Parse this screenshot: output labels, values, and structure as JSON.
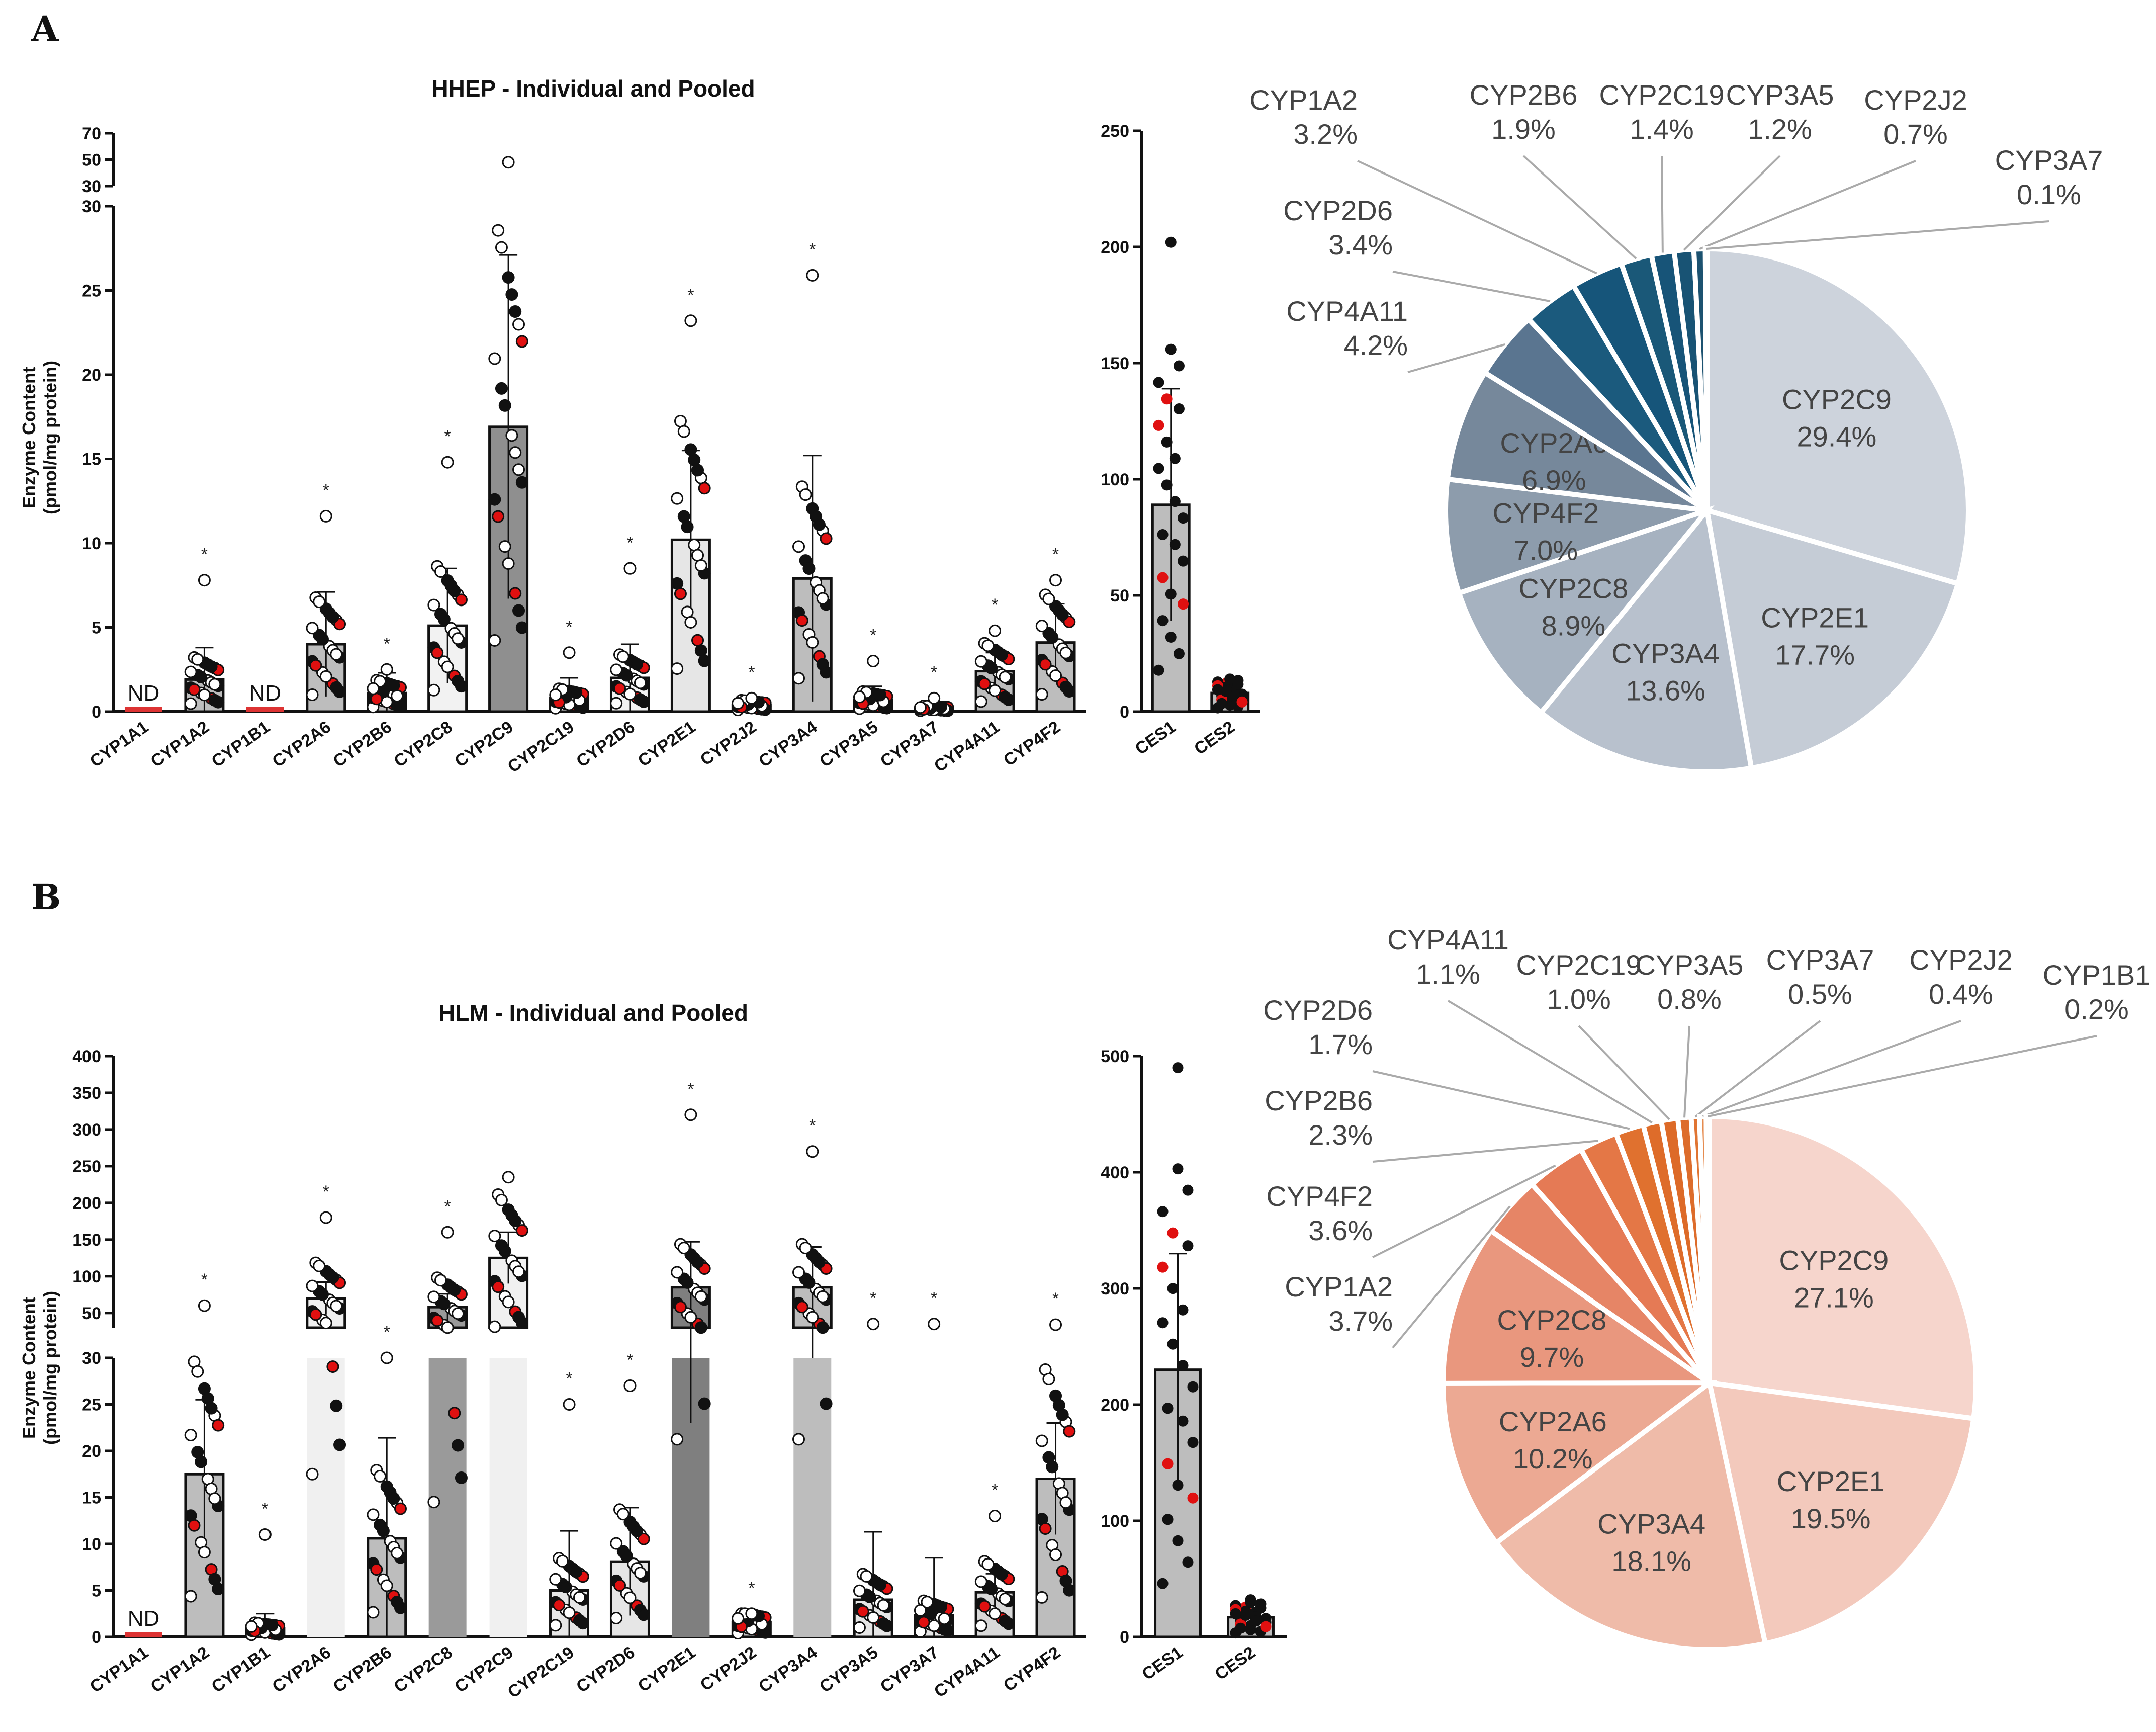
{
  "panels": [
    {
      "id": "A",
      "label": "A",
      "bar_chart": {
        "title": "HHEP - Individual and Pooled",
        "ylabel_line1": "Enzyme Content",
        "ylabel_line2": "(pmol/mg protein)",
        "break_lower_ticks": [
          "0",
          "5",
          "10",
          "15",
          "20",
          "25",
          "30"
        ],
        "break_upper_ticks": [
          "30",
          "50",
          "70"
        ]
      },
      "ces_chart": {
        "ticks": [
          "0",
          "50",
          "100",
          "150",
          "200",
          "250"
        ]
      },
      "pie_labels": [
        {
          "name": "CYP2C9",
          "pct": "29.4%"
        },
        {
          "name": "CYP2E1",
          "pct": "17.7%"
        },
        {
          "name": "CYP3A4",
          "pct": "13.6%"
        },
        {
          "name": "CYP2C8",
          "pct": "8.9%"
        },
        {
          "name": "CYP4F2",
          "pct": "7.0%"
        },
        {
          "name": "CYP2A6",
          "pct": "6.9%"
        },
        {
          "name": "CYP4A11",
          "pct": "4.2%"
        },
        {
          "name": "CYP2D6",
          "pct": "3.4%"
        },
        {
          "name": "CYP1A2",
          "pct": "3.2%"
        },
        {
          "name": "CYP2B6",
          "pct": "1.9%"
        },
        {
          "name": "CYP2C19",
          "pct": "1.4%"
        },
        {
          "name": "CYP3A5",
          "pct": "1.2%"
        },
        {
          "name": "CYP2J2",
          "pct": "0.7%"
        },
        {
          "name": "CYP3A7",
          "pct": "0.1%"
        }
      ]
    },
    {
      "id": "B",
      "label": "B",
      "bar_chart": {
        "title": "HLM - Individual and Pooled",
        "ylabel_line1": "Enzyme Content",
        "ylabel_line2": "(pmol/mg protein)",
        "break_lower_ticks": [
          "0",
          "5",
          "10",
          "15",
          "20",
          "25",
          "30"
        ],
        "break_upper_ticks": [
          "50",
          "100",
          "150",
          "200",
          "250",
          "300",
          "350",
          "400"
        ]
      },
      "ces_chart": {
        "ticks": [
          "0",
          "100",
          "200",
          "300",
          "400",
          "500"
        ]
      },
      "pie_labels": [
        {
          "name": "CYP2C9",
          "pct": "27.1%"
        },
        {
          "name": "CYP2E1",
          "pct": "19.5%"
        },
        {
          "name": "CYP3A4",
          "pct": "18.1%"
        },
        {
          "name": "CYP2A6",
          "pct": "10.2%"
        },
        {
          "name": "CYP2C8",
          "pct": "9.7%"
        },
        {
          "name": "CYP1A2",
          "pct": "3.7%"
        },
        {
          "name": "CYP4F2",
          "pct": "3.6%"
        },
        {
          "name": "CYP2B6",
          "pct": "2.3%"
        },
        {
          "name": "CYP2D6",
          "pct": "1.7%"
        },
        {
          "name": "CYP4A11",
          "pct": "1.1%"
        },
        {
          "name": "CYP2C19",
          "pct": "1.0%"
        },
        {
          "name": "CYP3A5",
          "pct": "0.8%"
        },
        {
          "name": "CYP3A7",
          "pct": "0.5%"
        },
        {
          "name": "CYP2J2",
          "pct": "0.4%"
        },
        {
          "name": "CYP1B1",
          "pct": "0.2%"
        }
      ]
    }
  ],
  "nd_label": "ND",
  "significance_marker": "*",
  "chart_data": [
    {
      "type": "bar",
      "panel": "A",
      "title": "HHEP - Individual and Pooled",
      "xlabel": "",
      "ylabel": "Enzyme Content (pmol/mg protein)",
      "ylim": [
        0,
        70
      ],
      "axis_break": {
        "lower": [
          0,
          30
        ],
        "upper": [
          30,
          70
        ]
      },
      "categories": [
        "CYP1A1",
        "CYP1A2",
        "CYP1B1",
        "CYP2A6",
        "CYP2B6",
        "CYP2C8",
        "CYP2C9",
        "CYP2C19",
        "CYP2D6",
        "CYP2E1",
        "CYP2J2",
        "CYP3A4",
        "CYP3A5",
        "CYP3A7",
        "CYP4A11",
        "CYP4F2"
      ],
      "values": [
        0,
        1.9,
        0,
        4.0,
        1.1,
        5.1,
        16.9,
        0.8,
        2.0,
        10.2,
        0.4,
        7.9,
        0.7,
        0.2,
        2.4,
        4.1
      ],
      "error_sd": [
        0,
        1.9,
        0,
        3.1,
        1.2,
        3.4,
        10.2,
        1.2,
        2.0,
        5.3,
        0.3,
        7.3,
        0.8,
        0.3,
        1.1,
        2.3
      ],
      "not_detected": [
        "CYP1A1",
        "CYP1B1"
      ],
      "significant": [
        "CYP1A2",
        "CYP2A6",
        "CYP2B6",
        "CYP2C8",
        "CYP2C19",
        "CYP2D6",
        "CYP2E1",
        "CYP2J2",
        "CYP3A4",
        "CYP3A5",
        "CYP3A7",
        "CYP4A11",
        "CYP4F2"
      ],
      "bar_fill": [
        "#e6e6e6",
        "#bdbdbd",
        "#e6e6e6",
        "#bdbdbd",
        "#bdbdbd",
        "#f2f2f2",
        "#8f8f8f",
        "#f2f2f2",
        "#f2f2f2",
        "#e6e6e6",
        "#e6e6e6",
        "#bdbdbd",
        "#e6e6e6",
        "#e6e6e6",
        "#bdbdbd",
        "#bdbdbd"
      ],
      "max_point": [
        0,
        7.8,
        0,
        11.6,
        2.5,
        14.8,
        48,
        3.5,
        8.5,
        23.2,
        0.8,
        25.9,
        3.0,
        0.8,
        4.8,
        7.8
      ]
    },
    {
      "type": "bar",
      "panel": "A",
      "title": "",
      "xlabel": "",
      "ylabel": "",
      "ylim": [
        0,
        250
      ],
      "categories": [
        "CES1",
        "CES2"
      ],
      "values": [
        89,
        8
      ],
      "error_sd": [
        50,
        3
      ],
      "max_point": [
        202,
        14
      ]
    },
    {
      "type": "pie",
      "panel": "A",
      "title": "",
      "labels": [
        "CYP2C9",
        "CYP2E1",
        "CYP3A4",
        "CYP2C8",
        "CYP4F2",
        "CYP2A6",
        "CYP4A11",
        "CYP2D6",
        "CYP1A2",
        "CYP2B6",
        "CYP2C19",
        "CYP3A5",
        "CYP2J2",
        "CYP3A7"
      ],
      "values": [
        29.4,
        17.7,
        13.6,
        8.9,
        7.0,
        6.9,
        4.2,
        3.4,
        3.2,
        1.9,
        1.4,
        1.2,
        0.7,
        0.1
      ],
      "colors": [
        "#cdd3dc",
        "#c5ccd6",
        "#b8c1cd",
        "#a6b2c0",
        "#8d9cac",
        "#76889b",
        "#5a7590",
        "#1b5a7d",
        "#16557a",
        "#1a5878",
        "#175478",
        "#185374",
        "#1c5270",
        "#20506c"
      ]
    },
    {
      "type": "bar",
      "panel": "B",
      "title": "HLM - Individual and Pooled",
      "xlabel": "",
      "ylabel": "Enzyme Content (pmol/mg protein)",
      "ylim": [
        0,
        400
      ],
      "axis_break": {
        "lower": [
          0,
          30
        ],
        "upper": [
          30,
          400
        ]
      },
      "categories": [
        "CYP1A1",
        "CYP1A2",
        "CYP1B1",
        "CYP2A6",
        "CYP2B6",
        "CYP2C8",
        "CYP2C9",
        "CYP2C19",
        "CYP2D6",
        "CYP2E1",
        "CYP2J2",
        "CYP3A4",
        "CYP3A5",
        "CYP3A7",
        "CYP4A11",
        "CYP4F2"
      ],
      "values": [
        0,
        17.5,
        0.9,
        70,
        10.6,
        58,
        125,
        5.0,
        8.1,
        85,
        1.6,
        85,
        4.0,
        2.3,
        4.8,
        17.0
      ],
      "error_sd": [
        0,
        8,
        1.6,
        22,
        10.8,
        18,
        35,
        6.4,
        5.8,
        62,
        0.5,
        55,
        7.3,
        6.2,
        2.0,
        6.0
      ],
      "not_detected": [
        "CYP1A1"
      ],
      "significant": [
        "CYP1A2",
        "CYP1B1",
        "CYP2A6",
        "CYP2B6",
        "CYP2C8",
        "CYP2C19",
        "CYP2D6",
        "CYP2E1",
        "CYP2J2",
        "CYP3A4",
        "CYP3A5",
        "CYP3A7",
        "CYP4A11",
        "CYP4F2"
      ],
      "bar_fill": [
        "#e6e6e6",
        "#bdbdbd",
        "#e6e6e6",
        "#f0f0f0",
        "#bdbdbd",
        "#9a9a9a",
        "#f0f0f0",
        "#e6e6e6",
        "#e6e6e6",
        "#7f7f7f",
        "#bdbdbd",
        "#bdbdbd",
        "#e6e6e6",
        "#e6e6e6",
        "#d9d9d9",
        "#bdbdbd"
      ],
      "max_point": [
        0,
        60,
        11,
        180,
        30,
        160,
        235,
        25,
        27,
        320,
        2.5,
        270,
        35,
        35,
        13,
        34
      ]
    },
    {
      "type": "bar",
      "panel": "B",
      "title": "",
      "xlabel": "",
      "ylabel": "",
      "ylim": [
        0,
        500
      ],
      "categories": [
        "CES1",
        "CES2"
      ],
      "values": [
        230,
        17
      ],
      "error_sd": [
        100,
        8
      ],
      "max_point": [
        490,
        32
      ]
    },
    {
      "type": "pie",
      "panel": "B",
      "title": "",
      "labels": [
        "CYP2C9",
        "CYP2E1",
        "CYP3A4",
        "CYP2A6",
        "CYP2C8",
        "CYP1A2",
        "CYP4F2",
        "CYP2B6",
        "CYP2D6",
        "CYP4A11",
        "CYP2C19",
        "CYP3A5",
        "CYP3A7",
        "CYP2J2",
        "CYP1B1"
      ],
      "values": [
        27.1,
        19.5,
        18.1,
        10.2,
        9.7,
        3.7,
        3.6,
        2.3,
        1.7,
        1.1,
        1.0,
        0.8,
        0.5,
        0.4,
        0.2
      ],
      "colors": [
        "#f6d5cc",
        "#f3c9bc",
        "#efbba9",
        "#eca993",
        "#e9977e",
        "#e68566",
        "#e57a55",
        "#e47746",
        "#e0712f",
        "#de6c2a",
        "#dd6a28",
        "#dd6c2b",
        "#e07432",
        "#e58b4f",
        "#f3c09a"
      ]
    }
  ]
}
